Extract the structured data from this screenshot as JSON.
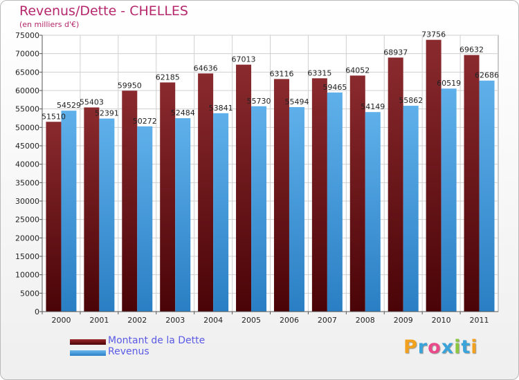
{
  "header": {
    "title": "Revenus/Dette - CHELLES",
    "subtitle": "(en milliers d'€)"
  },
  "chart_data": {
    "type": "bar",
    "categories": [
      "2000",
      "2001",
      "2002",
      "2003",
      "2004",
      "2005",
      "2006",
      "2007",
      "2008",
      "2009",
      "2010",
      "2011"
    ],
    "series": [
      {
        "name": "Montant de la Dette",
        "color": "#7a0f14",
        "values": [
          51510,
          55403,
          59950,
          62185,
          64636,
          67013,
          63116,
          63315,
          64052,
          68937,
          73756,
          69632
        ],
        "labels": [
          "51510",
          "55403",
          "59950",
          "62185",
          "64636",
          "67013",
          "63116",
          "63315",
          "64052",
          "68937",
          "73756",
          "69632"
        ]
      },
      {
        "name": "Revenus",
        "color": "#3e96dc",
        "values": [
          54529,
          52391,
          50272,
          52484,
          53841,
          55730,
          55494,
          59465,
          54149,
          55862,
          60519,
          62686
        ],
        "labels": [
          "54529",
          "52391",
          "50272",
          "52484",
          "53841",
          "55730",
          "55494",
          "59465",
          "54149",
          "55862",
          "60519",
          "62686"
        ]
      }
    ],
    "ylim": [
      0,
      75000
    ],
    "yticks": [
      0,
      5000,
      10000,
      15000,
      20000,
      25000,
      30000,
      35000,
      40000,
      45000,
      50000,
      55000,
      60000,
      65000,
      70000,
      75000
    ],
    "grid": true,
    "legend": "bottom-left"
  },
  "legend": {
    "items": [
      {
        "label": "Montant de la Dette",
        "color": "#7a0f14"
      },
      {
        "label": "Revenus",
        "color": "#3e96dc"
      }
    ]
  },
  "logo": {
    "letters": [
      "P",
      "r",
      "o",
      "x",
      "i",
      "t",
      "i"
    ],
    "colors": [
      "#f2a11f",
      "#3aa3d9",
      "#e94b8a",
      "#3aa3d9",
      "#8cc63f",
      "#3aa3d9",
      "#f2a11f"
    ]
  }
}
